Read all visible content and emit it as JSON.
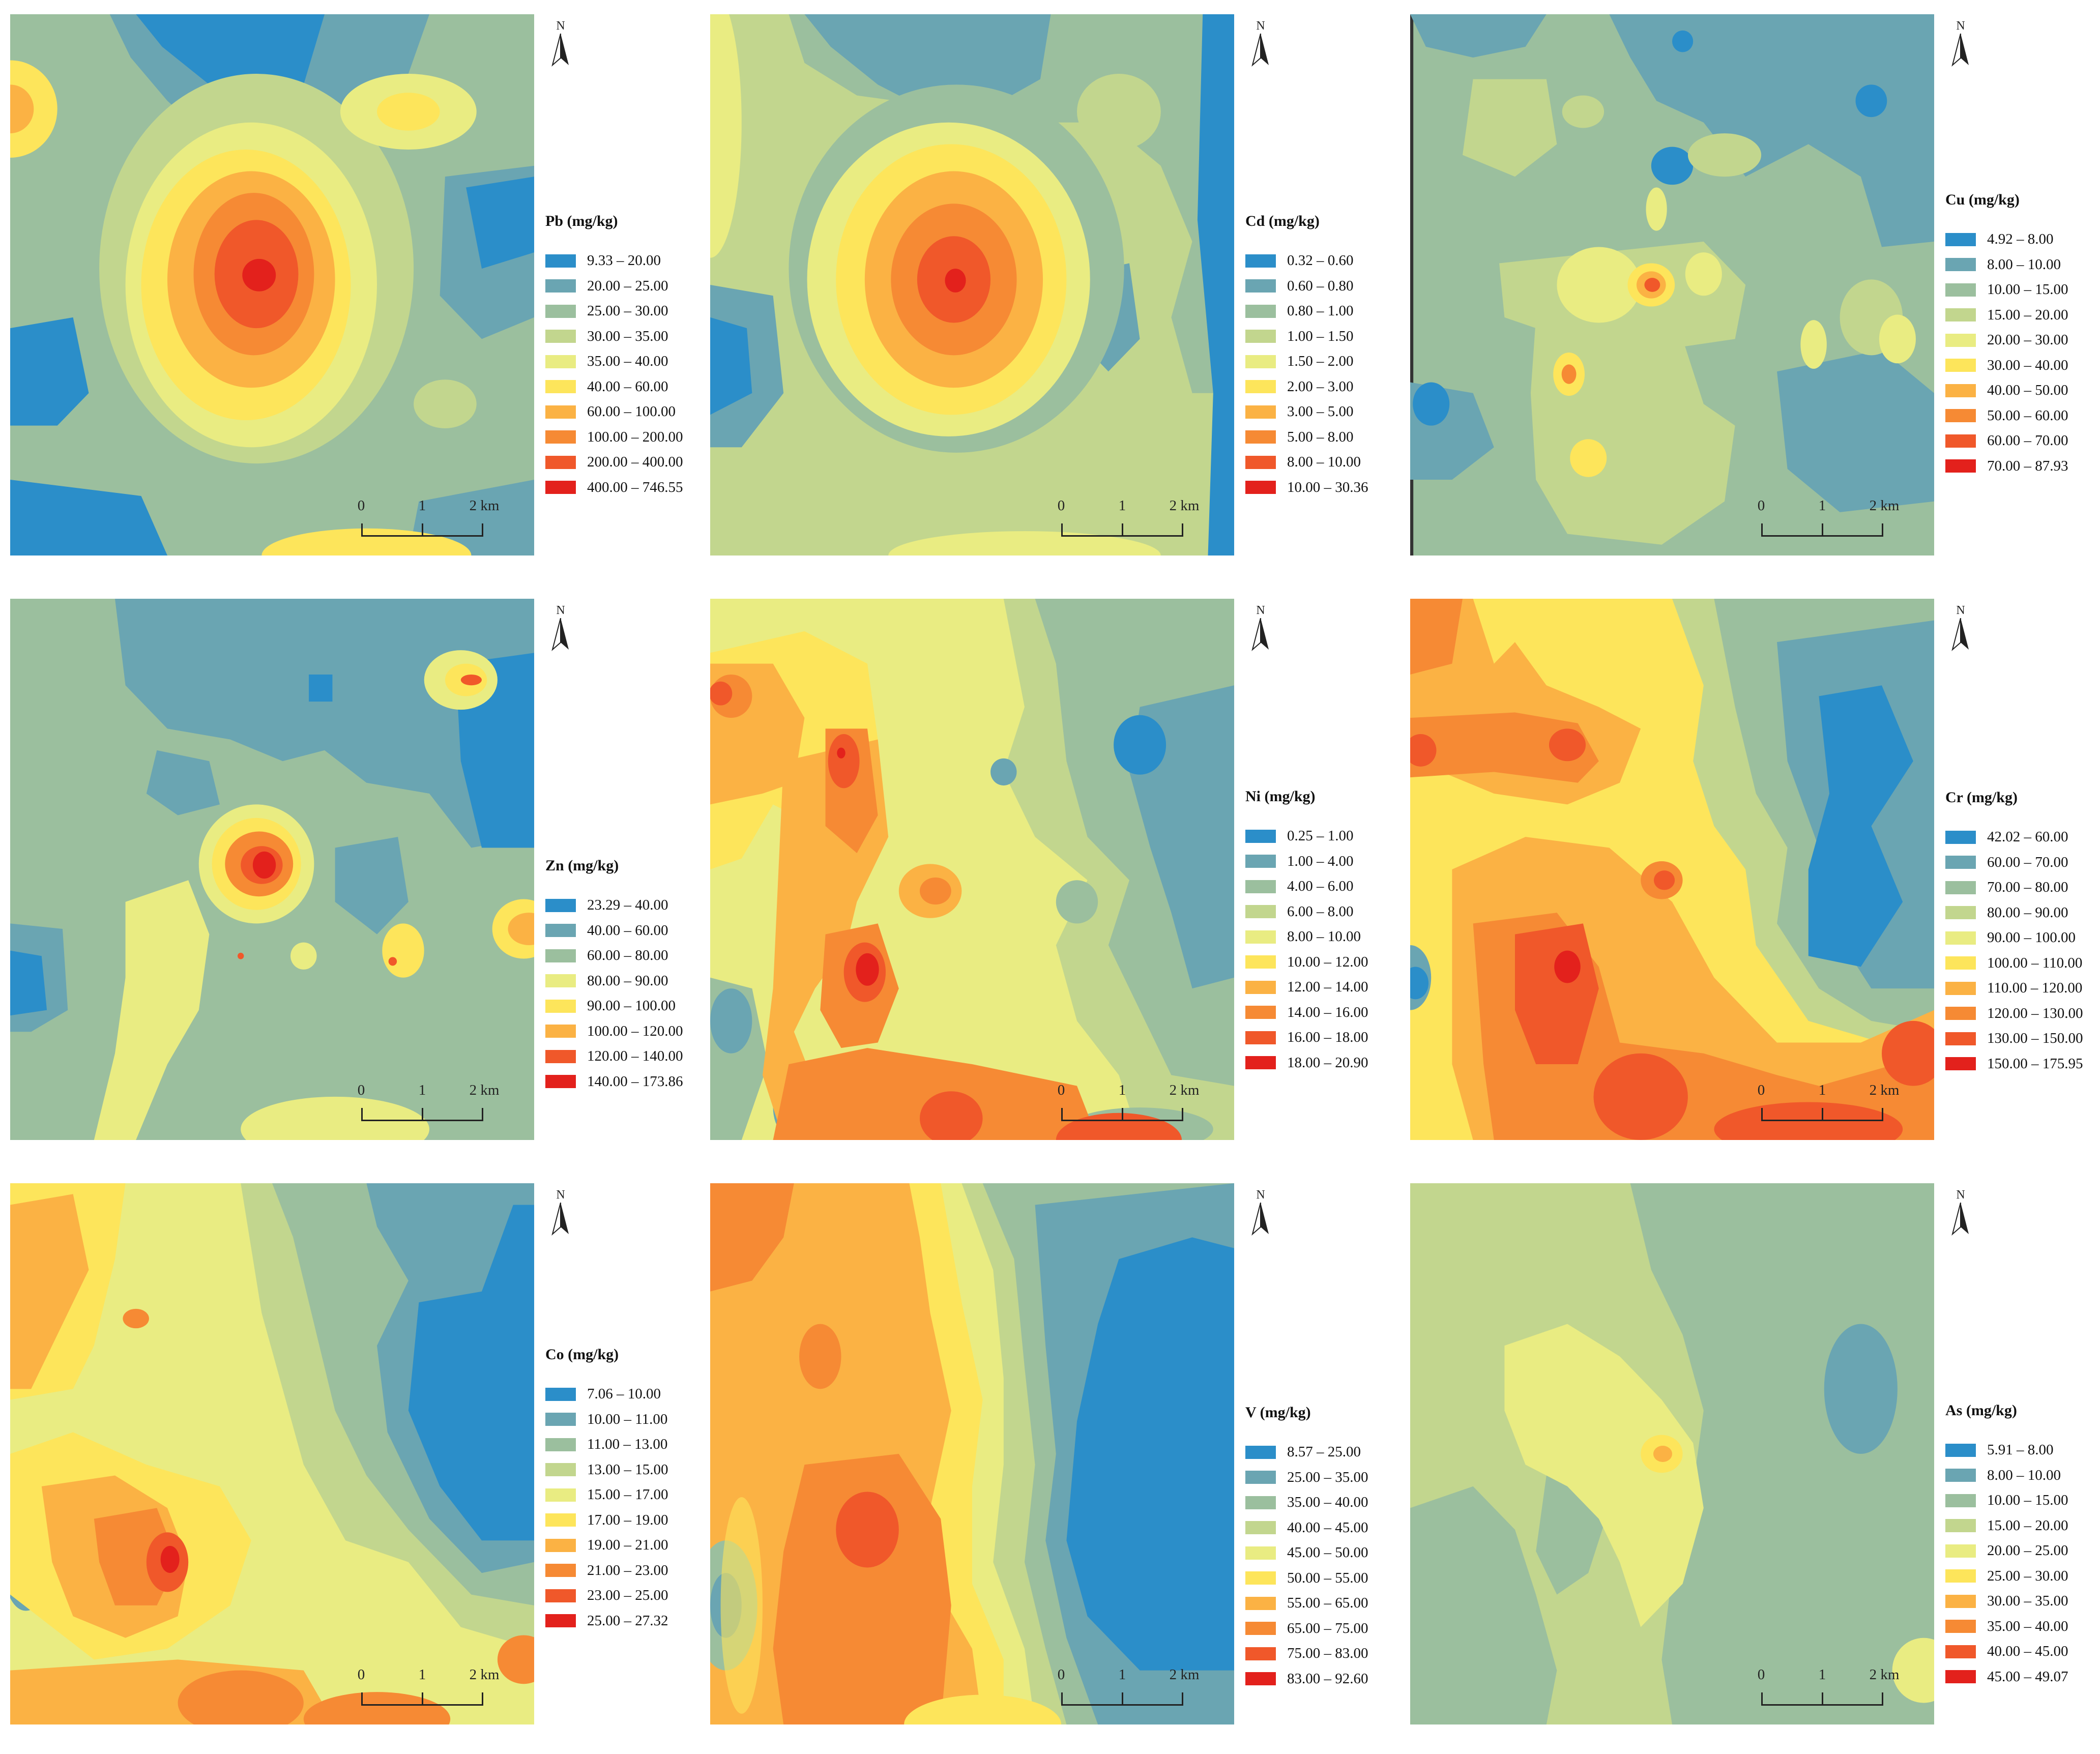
{
  "scale_labels": [
    "0",
    "1",
    "2 km"
  ],
  "north_label": "N",
  "panels": [
    {
      "title": "Pb (mg/kg)",
      "classes": [
        "9.33 – 20.00",
        "20.00 – 25.00",
        "25.00 – 30.00",
        "30.00 – 35.00",
        "35.00 – 40.00",
        "40.00 – 60.00",
        "60.00 – 100.00",
        "100.00 – 200.00",
        "200.00 – 400.00",
        "400.00 – 746.55"
      ]
    },
    {
      "title": "Cd (mg/kg)",
      "classes": [
        "0.32 – 0.60",
        "0.60 – 0.80",
        "0.80 – 1.00",
        "1.00 – 1.50",
        "1.50 – 2.00",
        "2.00 – 3.00",
        "3.00 – 5.00",
        "5.00 – 8.00",
        "8.00 – 10.00",
        "10.00 – 30.36"
      ]
    },
    {
      "title": "Cu (mg/kg)",
      "classes": [
        "4.92 – 8.00",
        "8.00 – 10.00",
        "10.00 – 15.00",
        "15.00 – 20.00",
        "20.00 – 30.00",
        "30.00 – 40.00",
        "40.00 – 50.00",
        "50.00 – 60.00",
        "60.00 – 70.00",
        "70.00 – 87.93"
      ]
    },
    {
      "title": "Zn (mg/kg)",
      "classes": [
        "23.29 – 40.00",
        "40.00 – 60.00",
        "60.00 – 80.00",
        "80.00 – 90.00",
        "90.00 – 100.00",
        "100.00 – 120.00",
        "120.00 – 140.00",
        "140.00 – 173.86"
      ]
    },
    {
      "title": "Ni (mg/kg)",
      "classes": [
        "0.25 – 1.00",
        "1.00 – 4.00",
        "4.00 – 6.00",
        "6.00 – 8.00",
        "8.00 – 10.00",
        "10.00 – 12.00",
        "12.00 – 14.00",
        "14.00 – 16.00",
        "16.00 – 18.00",
        "18.00 – 20.90"
      ]
    },
    {
      "title": "Cr (mg/kg)",
      "classes": [
        "42.02 – 60.00",
        "60.00 – 70.00",
        "70.00 – 80.00",
        "80.00 – 90.00",
        "90.00 – 100.00",
        "100.00 – 110.00",
        "110.00 – 120.00",
        "120.00 – 130.00",
        "130.00 – 150.00",
        "150.00 – 175.95"
      ]
    },
    {
      "title": "Co (mg/kg)",
      "classes": [
        "7.06 – 10.00",
        "10.00 – 11.00",
        "11.00 – 13.00",
        "13.00 – 15.00",
        "15.00 – 17.00",
        "17.00 – 19.00",
        "19.00 – 21.00",
        "21.00 – 23.00",
        "23.00 – 25.00",
        "25.00 – 27.32"
      ]
    },
    {
      "title": "V (mg/kg)",
      "classes": [
        "8.57 – 25.00",
        "25.00 – 35.00",
        "35.00 – 40.00",
        "40.00 – 45.00",
        "45.00 – 50.00",
        "50.00 – 55.00",
        "55.00 – 65.00",
        "65.00 – 75.00",
        "75.00 – 83.00",
        "83.00 – 92.60"
      ]
    },
    {
      "title": "As (mg/kg)",
      "classes": [
        "5.91 – 8.00",
        "8.00 – 10.00",
        "10.00 – 15.00",
        "15.00 – 20.00",
        "20.00 – 25.00",
        "25.00 – 30.00",
        "30.00 – 35.00",
        "35.00 – 40.00",
        "40.00 – 45.00",
        "45.00 – 49.07"
      ]
    }
  ],
  "colors": {
    "ramp10": [
      "#2b8ec9",
      "#6aa5b2",
      "#9bbf9e",
      "#c2d68e",
      "#e9ec82",
      "#fde55b",
      "#fbb244",
      "#f68a34",
      "#f0582a",
      "#e3211c"
    ],
    "ramp8": [
      "#2b8ec9",
      "#6aa5b2",
      "#9bbf9e",
      "#e9ec82",
      "#fde55b",
      "#fbb244",
      "#f0582a",
      "#e3211c"
    ]
  }
}
